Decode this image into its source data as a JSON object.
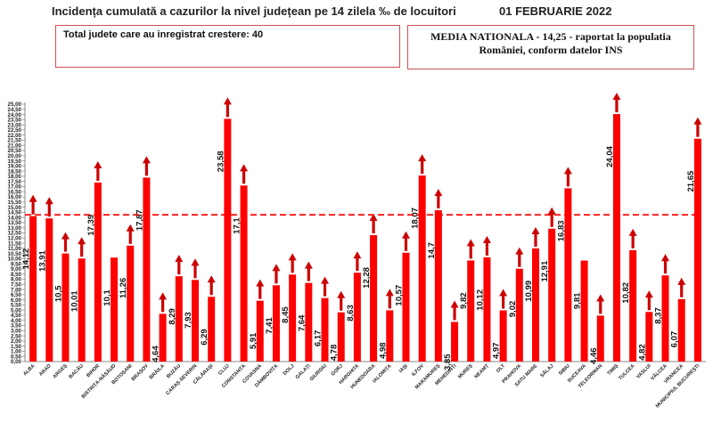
{
  "header": {
    "title": "Incidența cumulată a cazurilor la nivel județean pe 14 zilela ‰ de locuitori",
    "date": "01 FEBRUARIE 2022"
  },
  "info_left": {
    "text": "Total judete care au inregistrat crestere: 40"
  },
  "info_right": {
    "line1": "MEDIA NATIONALA - 14,25 -  raportat la populatia",
    "line2": "României, conform datelor INS"
  },
  "colors": {
    "bar": "#ff0000",
    "arrow": "#cc0000",
    "average_line": "#ff0000"
  },
  "chart_data": {
    "type": "bar",
    "title": "Incidența cumulată a cazurilor la nivel județean pe 14 zilela ‰ de locuitori",
    "categories": [
      "ALBA",
      "ARAD",
      "ARGEȘ",
      "BACĂU",
      "BIHOR",
      "BISTRIȚA-NĂSĂUD",
      "BOTOȘANI",
      "BRAȘOV",
      "BRĂILA",
      "BUZĂU",
      "CARAȘ-SEVERIN",
      "CĂLĂRAȘI",
      "CLUJ",
      "CONSTANȚA",
      "COVASNA",
      "DÂMBOVIȚA",
      "DOLJ",
      "GALAȚI",
      "GIURGIU",
      "GORJ",
      "HARGHITA",
      "HUNEDOARA",
      "IALOMIȚA",
      "IAȘI",
      "ILFOV",
      "MARAMUREȘ",
      "MEHEDINȚI",
      "MUREȘ",
      "NEAMȚ",
      "OLT",
      "PRAHOVA",
      "SATU MARE",
      "SĂLAJ",
      "SIBIU",
      "SUCEAVA",
      "TELEORMAN",
      "TIMIȘ",
      "TULCEA",
      "VASLUI",
      "VÂLCEA",
      "VRANCEA",
      "MUNICIPIUL BUCUREȘTI"
    ],
    "values": [
      14.12,
      13.91,
      10.5,
      10.01,
      17.39,
      10.1,
      11.26,
      17.87,
      4.64,
      8.29,
      7.93,
      6.29,
      23.58,
      17.1,
      5.91,
      7.41,
      8.45,
      7.64,
      6.17,
      4.78,
      8.63,
      12.28,
      4.98,
      10.57,
      18.07,
      14.7,
      3.85,
      9.82,
      10.12,
      4.97,
      9.02,
      10.99,
      12.91,
      16.83,
      9.81,
      4.46,
      24.04,
      10.82,
      4.82,
      8.37,
      6.07,
      21.65
    ],
    "value_labels": [
      "14,12",
      "13,91",
      "10,5",
      "10,01",
      "17,39",
      "10,1",
      "11,26",
      "17,87",
      "4,64",
      "8,29",
      "7,93",
      "6,29",
      "23,58",
      "17,1",
      "5,91",
      "7,41",
      "8,45",
      "7,64",
      "6,17",
      "4,78",
      "8,63",
      "12,28",
      "4,98",
      "10,57",
      "18,07",
      "14,7",
      "3,85",
      "9,82",
      "10,12",
      "4,97",
      "9,02",
      "10,99",
      "12,91",
      "16,83",
      "9,81",
      "4,46",
      "24,04",
      "10,82",
      "4,82",
      "8,37",
      "6,07",
      "21,65"
    ],
    "increase": [
      true,
      true,
      true,
      true,
      true,
      false,
      true,
      true,
      true,
      true,
      true,
      true,
      true,
      true,
      true,
      true,
      true,
      true,
      true,
      true,
      true,
      true,
      true,
      true,
      true,
      true,
      true,
      true,
      true,
      true,
      true,
      true,
      true,
      true,
      false,
      true,
      true,
      true,
      true,
      true,
      true,
      true
    ],
    "average": 14.25,
    "ylim": [
      0,
      25
    ],
    "ytick_step": 0.5,
    "ytick_labels": [
      "0,00",
      "0,50",
      "1,00",
      "1,50",
      "2,00",
      "2,50",
      "3,00",
      "3,50",
      "4,00",
      "4,50",
      "5,00",
      "5,50",
      "6,00",
      "6,50",
      "7,00",
      "7,50",
      "8,00",
      "8,50",
      "9,00",
      "9,50",
      "10,00",
      "10,50",
      "11,00",
      "11,50",
      "12,00",
      "12,50",
      "13,00",
      "13,50",
      "14,00",
      "14,50",
      "15,00",
      "15,50",
      "16,00",
      "16,50",
      "17,00",
      "17,50",
      "18,00",
      "18,50",
      "19,00",
      "19,50",
      "20,00",
      "20,50",
      "21,00",
      "21,50",
      "22,00",
      "22,50",
      "23,00",
      "23,50",
      "24,00",
      "24,50",
      "25,00"
    ],
    "grid": false,
    "legend": "none"
  }
}
